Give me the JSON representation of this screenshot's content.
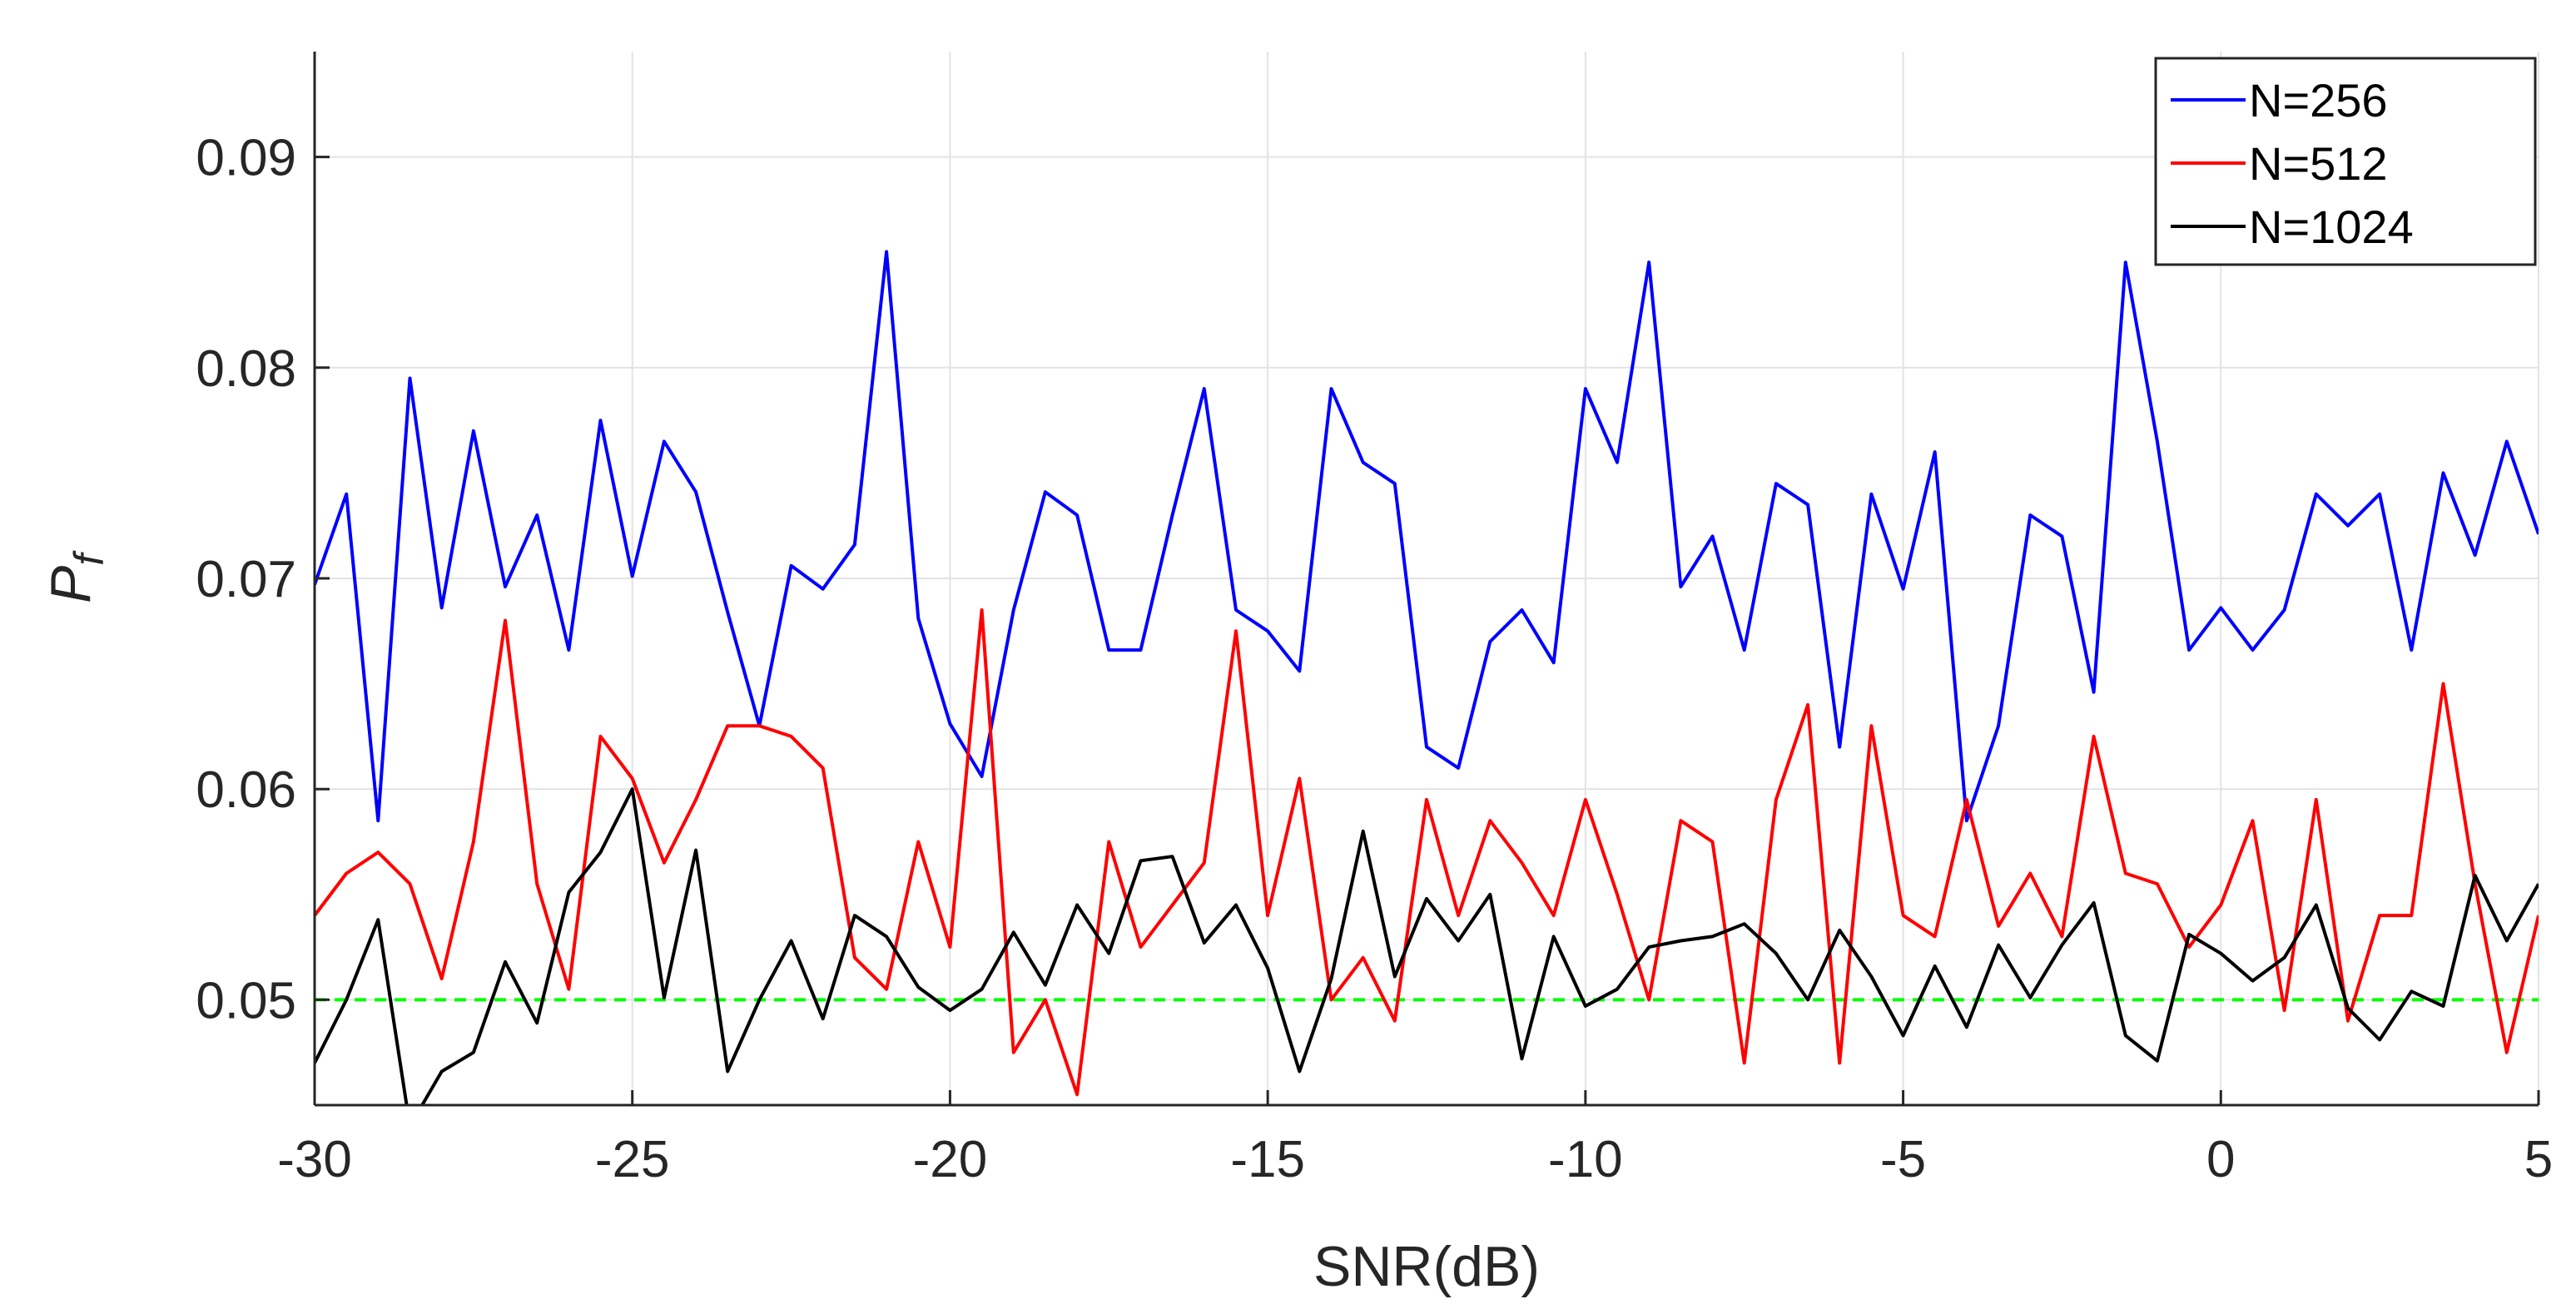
{
  "chart_data": {
    "type": "line",
    "xlabel": "SNR(dB)",
    "ylabel": "P",
    "ylabel_subscript": "f",
    "xlim": [
      -30,
      5
    ],
    "ylim": [
      0.045,
      0.095
    ],
    "xticks": [
      -30,
      -25,
      -20,
      -15,
      -10,
      -5,
      0,
      5
    ],
    "xtick_labels": [
      "-30",
      "-25",
      "-20",
      "-15",
      "-10",
      "-5",
      "0",
      "5"
    ],
    "yticks": [
      0.05,
      0.06,
      0.07,
      0.08,
      0.09
    ],
    "ytick_labels": [
      "0.05",
      "0.06",
      "0.07",
      "0.08",
      "0.09"
    ],
    "grid": true,
    "legend_position": "top-right",
    "x": [
      -30,
      -29.5,
      -29,
      -28.5,
      -28,
      -27.5,
      -27,
      -26.5,
      -26,
      -25.5,
      -25,
      -24.5,
      -24,
      -23.5,
      -23,
      -22.5,
      -22,
      -21.5,
      -21,
      -20.5,
      -20,
      -19.5,
      -19,
      -18.5,
      -18,
      -17.5,
      -17,
      -16.5,
      -16,
      -15.5,
      -15,
      -14.5,
      -14,
      -13.5,
      -13,
      -12.5,
      -12,
      -11.5,
      -11,
      -10.5,
      -10,
      -9.5,
      -9,
      -8.5,
      -8,
      -7.5,
      -7,
      -6.5,
      -6,
      -5.5,
      -5,
      -4.5,
      -4,
      -3.5,
      -3,
      -2.5,
      -2,
      -1.5,
      -1,
      -0.5,
      0,
      0.5,
      1,
      1.5,
      2,
      2.5,
      3,
      3.5,
      4,
      4.5,
      5
    ],
    "series": [
      {
        "name": "N=256",
        "color": "#0000ff",
        "values": [
          0.0697,
          0.074,
          0.0585,
          0.0795,
          0.0686,
          0.077,
          0.0696,
          0.073,
          0.0666,
          0.0775,
          0.0701,
          0.0765,
          0.0741,
          0.0684,
          0.063,
          0.0706,
          0.0695,
          0.0716,
          0.0855,
          0.0681,
          0.0631,
          0.0606,
          0.0685,
          0.0741,
          0.073,
          0.0666,
          0.0666,
          0.073,
          0.079,
          0.0685,
          0.0675,
          0.0656,
          0.079,
          0.0755,
          0.0745,
          0.062,
          0.061,
          0.067,
          0.0685,
          0.066,
          0.079,
          0.0755,
          0.085,
          0.0696,
          0.072,
          0.0666,
          0.0745,
          0.0735,
          0.062,
          0.074,
          0.0695,
          0.076,
          0.0585,
          0.063,
          0.073,
          0.072,
          0.0646,
          0.085,
          0.0765,
          0.0666,
          0.0686,
          0.0666,
          0.0685,
          0.074,
          0.0725,
          0.074,
          0.0666,
          0.075,
          0.0711,
          0.0765,
          0.0721
        ]
      },
      {
        "name": "N=512",
        "color": "#ff0000",
        "values": [
          0.054,
          0.056,
          0.057,
          0.0555,
          0.051,
          0.0575,
          0.068,
          0.0555,
          0.0505,
          0.0625,
          0.0605,
          0.0565,
          0.0595,
          0.063,
          0.063,
          0.0625,
          0.061,
          0.052,
          0.0505,
          0.0575,
          0.0525,
          0.0685,
          0.0475,
          0.05,
          0.0455,
          0.0575,
          0.0525,
          0.0545,
          0.0565,
          0.0675,
          0.054,
          0.0605,
          0.05,
          0.052,
          0.049,
          0.0595,
          0.054,
          0.0585,
          0.0565,
          0.054,
          0.0595,
          0.055,
          0.05,
          0.0585,
          0.0575,
          0.047,
          0.0595,
          0.064,
          0.047,
          0.063,
          0.054,
          0.053,
          0.0595,
          0.0535,
          0.056,
          0.053,
          0.0625,
          0.056,
          0.0555,
          0.0525,
          0.0545,
          0.0585,
          0.0495,
          0.0595,
          0.049,
          0.054,
          0.054,
          0.065,
          0.0555,
          0.0475,
          0.054
        ]
      },
      {
        "name": "N=1024",
        "color": "#000000",
        "values": [
          0.047,
          0.05,
          0.0538,
          0.044,
          0.0466,
          0.0475,
          0.0518,
          0.0489,
          0.0551,
          0.057,
          0.06,
          0.0501,
          0.0571,
          0.0466,
          0.05,
          0.0528,
          0.0491,
          0.054,
          0.053,
          0.0506,
          0.0495,
          0.0505,
          0.0532,
          0.0507,
          0.0545,
          0.0522,
          0.0566,
          0.0568,
          0.0527,
          0.0545,
          0.0515,
          0.0466,
          0.051,
          0.058,
          0.0511,
          0.0548,
          0.0528,
          0.055,
          0.0472,
          0.053,
          0.0497,
          0.0505,
          0.0525,
          0.0528,
          0.053,
          0.0536,
          0.0522,
          0.05,
          0.0533,
          0.0511,
          0.0483,
          0.0516,
          0.0487,
          0.0526,
          0.0501,
          0.0526,
          0.0546,
          0.0483,
          0.0471,
          0.0531,
          0.0522,
          0.0509,
          0.052,
          0.0545,
          0.0496,
          0.0481,
          0.0504,
          0.0497,
          0.0559,
          0.0528,
          0.0555
        ]
      }
    ],
    "reference_line": {
      "y": 0.05,
      "color": "#00ff00",
      "style": "dashed"
    }
  }
}
